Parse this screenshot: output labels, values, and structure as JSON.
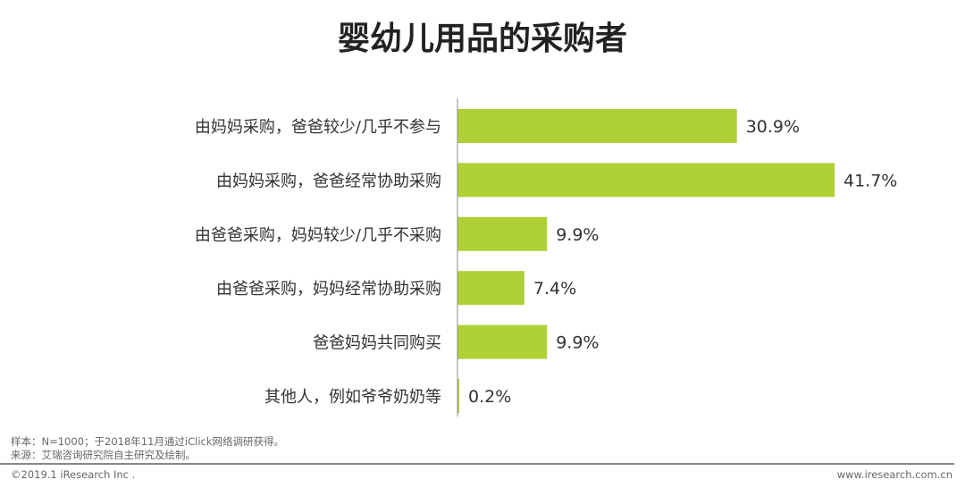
{
  "chart_data": {
    "type": "bar",
    "orientation": "horizontal",
    "title": "婴幼儿用品的采购者",
    "categories": [
      "由妈妈采购，爸爸较少/几乎不参与",
      "由妈妈采购，爸爸经常协助采购",
      "由爸爸采购，妈妈较少/几乎不采购",
      "由爸爸采购，妈妈经常协助采购",
      "爸爸妈妈共同购买",
      "其他人，例如爷爷奶奶等"
    ],
    "values": [
      30.9,
      41.7,
      9.9,
      7.4,
      9.9,
      0.2
    ],
    "data_labels": [
      "30.9%",
      "41.7%",
      "9.9%",
      "7.4%",
      "9.9%",
      "0.2%"
    ],
    "unit": "%",
    "bar_color": "#b0d136",
    "grid": false,
    "legend": "none"
  },
  "notes": {
    "sample": "样本：N=1000；于2018年11月通过iClick网络调研获得。",
    "source": "来源：艾瑞咨询研究院自主研究及绘制。"
  },
  "footer": {
    "copyright": "©2019.1 iResearch Inc .",
    "website": "www.iresearch.com.cn"
  }
}
